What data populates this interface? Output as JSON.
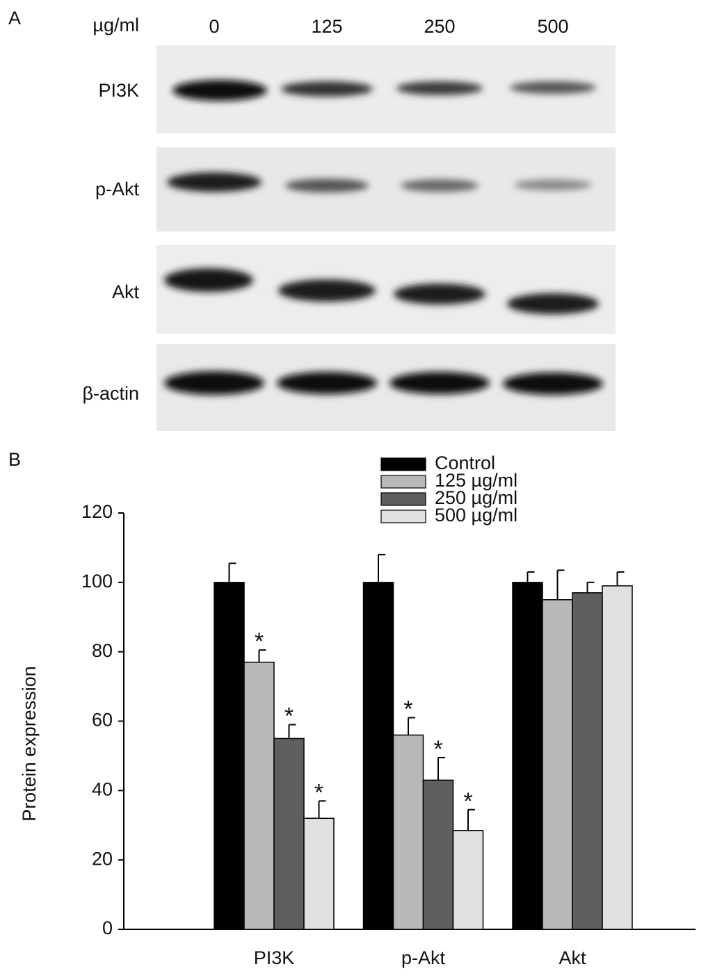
{
  "panel_labels": [
    "A",
    "B"
  ],
  "blot": {
    "unit": "µg/ml",
    "lanes": [
      "0",
      "125",
      "250",
      "500"
    ],
    "rows": [
      "PI3K",
      "p-Akt",
      "Akt",
      "β-actin"
    ]
  },
  "chart_data": {
    "type": "bar",
    "y_label": "Protein expression",
    "categories": [
      "PI3K",
      "p-Akt",
      "Akt"
    ],
    "series": [
      {
        "name": "Control",
        "color": "#000000",
        "values": [
          100,
          100,
          100
        ],
        "errors": [
          5.5,
          8,
          3
        ],
        "significance": [
          null,
          null,
          null
        ]
      },
      {
        "name": "125 µg/ml",
        "color": "#b8b8b8",
        "values": [
          77,
          56,
          95
        ],
        "errors": [
          3.5,
          5,
          8.5
        ],
        "significance": [
          "*",
          "*",
          null
        ]
      },
      {
        "name": "250 µg/ml",
        "color": "#5f5f5f",
        "values": [
          55,
          43,
          97
        ],
        "errors": [
          4,
          6.5,
          3
        ],
        "significance": [
          "*",
          "*",
          null
        ]
      },
      {
        "name": "500 µg/ml",
        "color": "#e0e0e0",
        "values": [
          32,
          28.5,
          99
        ],
        "errors": [
          5,
          6,
          4
        ],
        "significance": [
          "*",
          "*",
          null
        ]
      }
    ],
    "ylim": [
      0,
      120
    ],
    "yticks": [
      0,
      20,
      40,
      60,
      80,
      100,
      120
    ],
    "legend": "top-right"
  }
}
